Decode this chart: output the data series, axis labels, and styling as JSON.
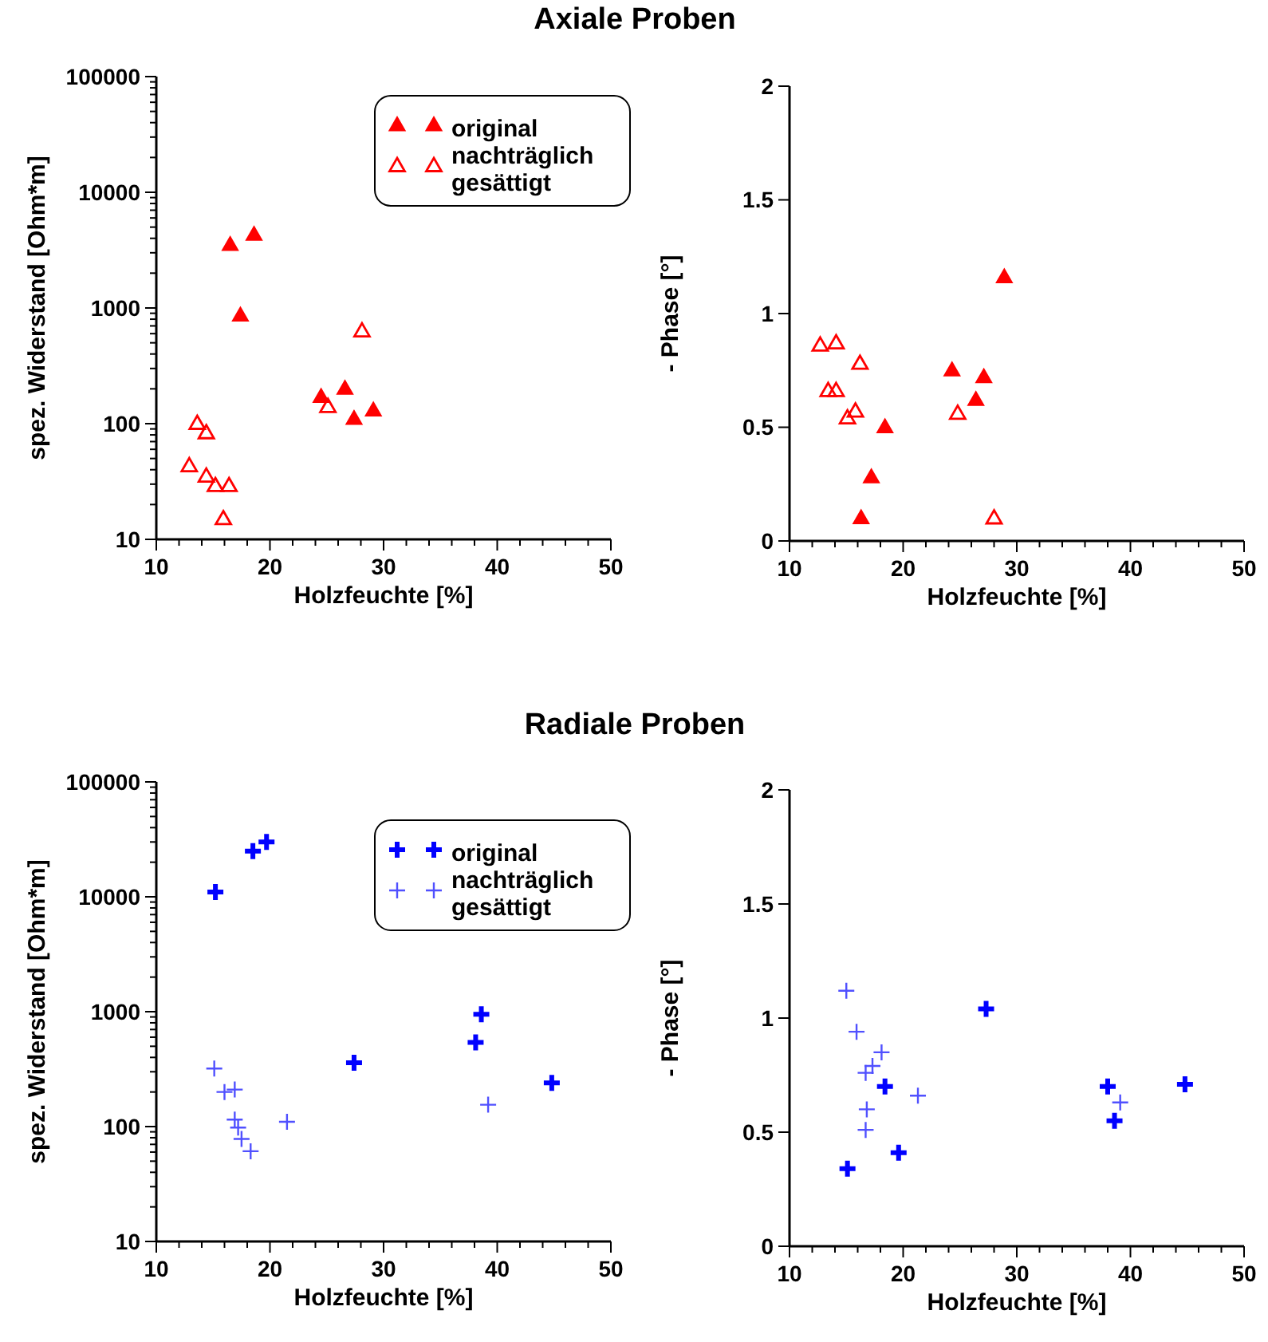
{
  "chart_data": [
    {
      "type": "scatter",
      "title": "Axiale Proben",
      "xlabel": "Holzfeuchte [%]",
      "ylabel": "spez. Widerstand [Ohm*m]",
      "log": "y",
      "marker": "triangle",
      "legend": "top right",
      "xlim": [
        10,
        50
      ],
      "xticks": [
        10,
        {
          "value": 12,
          "label": null
        },
        {
          "value": 14,
          "label": null
        },
        {
          "value": 16,
          "label": null
        },
        {
          "value": 18,
          "label": null
        },
        20,
        {
          "value": 22,
          "label": null
        },
        {
          "value": 24,
          "label": null
        },
        {
          "value": 26,
          "label": null
        },
        {
          "value": 28,
          "label": null
        },
        30,
        {
          "value": 32,
          "label": null
        },
        {
          "value": 34,
          "label": null
        },
        {
          "value": 36,
          "label": null
        },
        {
          "value": 38,
          "label": null
        },
        40,
        {
          "value": 42,
          "label": null
        },
        {
          "value": 44,
          "label": null
        },
        {
          "value": 46,
          "label": null
        },
        {
          "value": 48,
          "label": null
        },
        50
      ],
      "ylim": [
        10,
        100000
      ],
      "yticks": [
        10,
        {
          "value": 20,
          "label": null
        },
        {
          "value": 30,
          "label": null
        },
        {
          "value": 40,
          "label": null
        },
        {
          "value": 50,
          "label": null
        },
        {
          "value": 60,
          "label": null
        },
        {
          "value": 70,
          "label": null
        },
        {
          "value": 80,
          "label": null
        },
        {
          "value": 90,
          "label": null
        },
        100,
        {
          "value": 200,
          "label": null
        },
        {
          "value": 300,
          "label": null
        },
        {
          "value": 400,
          "label": null
        },
        {
          "value": 500,
          "label": null
        },
        {
          "value": 600,
          "label": null
        },
        {
          "value": 700,
          "label": null
        },
        {
          "value": 800,
          "label": null
        },
        {
          "value": 900,
          "label": null
        },
        1000,
        {
          "value": 2000,
          "label": null
        },
        {
          "value": 3000,
          "label": null
        },
        {
          "value": 4000,
          "label": null
        },
        {
          "value": 5000,
          "label": null
        },
        {
          "value": 6000,
          "label": null
        },
        {
          "value": 7000,
          "label": null
        },
        {
          "value": 8000,
          "label": null
        },
        {
          "value": 9000,
          "label": null
        },
        10000,
        {
          "value": 20000,
          "label": null
        },
        {
          "value": 30000,
          "label": null
        },
        {
          "value": 40000,
          "label": null
        },
        {
          "value": 50000,
          "label": null
        },
        {
          "value": 60000,
          "label": null
        },
        {
          "value": 70000,
          "label": null
        },
        {
          "value": 80000,
          "label": null
        },
        {
          "value": 90000,
          "label": null
        },
        100000
      ],
      "series": [
        {
          "name": "original",
          "color": "#ff0000",
          "x": [
            16.5,
            18.6,
            17.4,
            24.5,
            26.6,
            27.4,
            29.1
          ],
          "values": [
            3500,
            4300,
            860,
            170,
            200,
            110,
            130
          ]
        },
        {
          "name": "nachträglich gesättigt",
          "color": "#ff0000",
          "x": [
            28.1,
            25.1,
            13.6,
            14.4,
            12.9,
            14.4,
            15.2,
            16.4,
            15.9
          ],
          "values": [
            630,
            140,
            100,
            83,
            43,
            35,
            29,
            29,
            15
          ]
        }
      ]
    },
    {
      "type": "scatter",
      "xlabel": "Holzfeuchte [%]",
      "ylabel": "- Phase [°]",
      "marker": "triangle",
      "xlim": [
        10,
        50
      ],
      "xticks": [
        10,
        {
          "value": 12,
          "label": null
        },
        {
          "value": 14,
          "label": null
        },
        {
          "value": 16,
          "label": null
        },
        {
          "value": 18,
          "label": null
        },
        20,
        {
          "value": 22,
          "label": null
        },
        {
          "value": 24,
          "label": null
        },
        {
          "value": 26,
          "label": null
        },
        {
          "value": 28,
          "label": null
        },
        30,
        {
          "value": 32,
          "label": null
        },
        {
          "value": 34,
          "label": null
        },
        {
          "value": 36,
          "label": null
        },
        {
          "value": 38,
          "label": null
        },
        40,
        {
          "value": 42,
          "label": null
        },
        {
          "value": 44,
          "label": null
        },
        {
          "value": 46,
          "label": null
        },
        {
          "value": 48,
          "label": null
        },
        50
      ],
      "ylim": [
        0,
        2
      ],
      "yticks": [
        0,
        0.5,
        1,
        1.5,
        2
      ],
      "series": [
        {
          "color": "#ff0000",
          "x": [
            28.9,
            24.3,
            27.1,
            26.4,
            18.4,
            17.2,
            16.3
          ],
          "values": [
            1.16,
            0.75,
            0.72,
            0.62,
            0.5,
            0.28,
            0.1
          ]
        },
        {
          "color": "#ff0000",
          "x": [
            12.7,
            14.1,
            16.2,
            13.4,
            14.1,
            15.8,
            15.1,
            24.8,
            28.0
          ],
          "values": [
            0.86,
            0.87,
            0.78,
            0.66,
            0.66,
            0.57,
            0.54,
            0.56,
            0.1
          ]
        }
      ]
    },
    {
      "type": "scatter",
      "title": "Radiale Proben",
      "xlabel": "Holzfeuchte [%]",
      "ylabel": "spez. Widerstand [Ohm*m]",
      "log": "y",
      "marker": "cross",
      "legend": "top right",
      "xlim": [
        10,
        50
      ],
      "xticks": [
        10,
        {
          "value": 12,
          "label": null
        },
        {
          "value": 14,
          "label": null
        },
        {
          "value": 16,
          "label": null
        },
        {
          "value": 18,
          "label": null
        },
        20,
        {
          "value": 22,
          "label": null
        },
        {
          "value": 24,
          "label": null
        },
        {
          "value": 26,
          "label": null
        },
        {
          "value": 28,
          "label": null
        },
        30,
        {
          "value": 32,
          "label": null
        },
        {
          "value": 34,
          "label": null
        },
        {
          "value": 36,
          "label": null
        },
        {
          "value": 38,
          "label": null
        },
        40,
        {
          "value": 42,
          "label": null
        },
        {
          "value": 44,
          "label": null
        },
        {
          "value": 46,
          "label": null
        },
        {
          "value": 48,
          "label": null
        },
        50
      ],
      "ylim": [
        10,
        100000
      ],
      "yticks": [
        10,
        {
          "value": 20,
          "label": null
        },
        {
          "value": 30,
          "label": null
        },
        {
          "value": 40,
          "label": null
        },
        {
          "value": 50,
          "label": null
        },
        {
          "value": 60,
          "label": null
        },
        {
          "value": 70,
          "label": null
        },
        {
          "value": 80,
          "label": null
        },
        {
          "value": 90,
          "label": null
        },
        100,
        {
          "value": 200,
          "label": null
        },
        {
          "value": 300,
          "label": null
        },
        {
          "value": 400,
          "label": null
        },
        {
          "value": 500,
          "label": null
        },
        {
          "value": 600,
          "label": null
        },
        {
          "value": 700,
          "label": null
        },
        {
          "value": 800,
          "label": null
        },
        {
          "value": 900,
          "label": null
        },
        1000,
        {
          "value": 2000,
          "label": null
        },
        {
          "value": 3000,
          "label": null
        },
        {
          "value": 4000,
          "label": null
        },
        {
          "value": 5000,
          "label": null
        },
        {
          "value": 6000,
          "label": null
        },
        {
          "value": 7000,
          "label": null
        },
        {
          "value": 8000,
          "label": null
        },
        {
          "value": 9000,
          "label": null
        },
        10000,
        {
          "value": 20000,
          "label": null
        },
        {
          "value": 30000,
          "label": null
        },
        {
          "value": 40000,
          "label": null
        },
        {
          "value": 50000,
          "label": null
        },
        {
          "value": 60000,
          "label": null
        },
        {
          "value": 70000,
          "label": null
        },
        {
          "value": 80000,
          "label": null
        },
        {
          "value": 90000,
          "label": null
        },
        100000
      ],
      "series": [
        {
          "name": "original",
          "color": "#0000ff",
          "x": [
            15.2,
            18.5,
            19.7,
            27.4,
            38.1,
            38.6,
            44.8
          ],
          "values": [
            11000,
            25000,
            30000,
            360,
            540,
            950,
            240
          ]
        },
        {
          "name": "nachträglich gesättigt",
          "color": "#5050ff",
          "x": [
            15.1,
            16.0,
            16.9,
            16.9,
            17.2,
            17.5,
            18.3,
            21.5,
            39.2
          ],
          "values": [
            320,
            200,
            210,
            115,
            98,
            78,
            61,
            110,
            155
          ]
        }
      ]
    },
    {
      "type": "scatter",
      "xlabel": "Holzfeuchte [%]",
      "ylabel": "- Phase [°]",
      "marker": "cross",
      "xlim": [
        10,
        50
      ],
      "xticks": [
        10,
        {
          "value": 12,
          "label": null
        },
        {
          "value": 14,
          "label": null
        },
        {
          "value": 16,
          "label": null
        },
        {
          "value": 18,
          "label": null
        },
        20,
        {
          "value": 22,
          "label": null
        },
        {
          "value": 24,
          "label": null
        },
        {
          "value": 26,
          "label": null
        },
        {
          "value": 28,
          "label": null
        },
        30,
        {
          "value": 32,
          "label": null
        },
        {
          "value": 34,
          "label": null
        },
        {
          "value": 36,
          "label": null
        },
        {
          "value": 38,
          "label": null
        },
        40,
        {
          "value": 42,
          "label": null
        },
        {
          "value": 44,
          "label": null
        },
        {
          "value": 46,
          "label": null
        },
        {
          "value": 48,
          "label": null
        },
        50
      ],
      "ylim": [
        0,
        2
      ],
      "yticks": [
        0,
        0.5,
        1,
        1.5,
        2
      ],
      "series": [
        {
          "color": "#0000ff",
          "x": [
            27.3,
            18.4,
            19.6,
            15.1,
            38.0,
            38.6,
            44.8
          ],
          "values": [
            1.04,
            0.7,
            0.41,
            0.34,
            0.7,
            0.55,
            0.71
          ]
        },
        {
          "color": "#5050ff",
          "x": [
            15.0,
            15.9,
            18.1,
            17.3,
            16.7,
            21.3,
            16.8,
            16.7,
            39.1
          ],
          "values": [
            1.12,
            0.94,
            0.85,
            0.79,
            0.76,
            0.66,
            0.6,
            0.51,
            0.63
          ]
        }
      ]
    }
  ]
}
